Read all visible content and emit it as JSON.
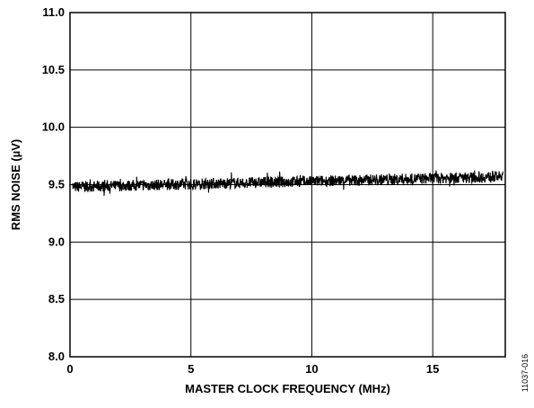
{
  "chart_data": {
    "type": "line",
    "title": "",
    "xlabel": "MASTER CLOCK FREQUENCY (MHz)",
    "ylabel": "RMS NOISE (µV)",
    "xlim": [
      0,
      18
    ],
    "ylim": [
      8.0,
      11.0
    ],
    "x_ticks": [
      0,
      5,
      10,
      15
    ],
    "x_tick_labels": [
      "0",
      "5",
      "10",
      "15"
    ],
    "y_ticks": [
      8.0,
      8.5,
      9.0,
      9.5,
      10.0,
      10.5,
      11.0
    ],
    "y_tick_labels": [
      "8.0",
      "8.5",
      "9.0",
      "9.5",
      "10.0",
      "10.5",
      "11.0"
    ],
    "grid": true,
    "legend": "none",
    "line_color": "#000000",
    "series": [
      {
        "x": [
          0.1,
          2,
          4,
          6,
          8,
          10,
          12,
          14,
          16,
          17.9
        ],
        "values": [
          9.48,
          9.49,
          9.5,
          9.51,
          9.52,
          9.53,
          9.54,
          9.55,
          9.56,
          9.57
        ],
        "noise_band": 0.06
      }
    ]
  },
  "figure_id": "11037-016"
}
